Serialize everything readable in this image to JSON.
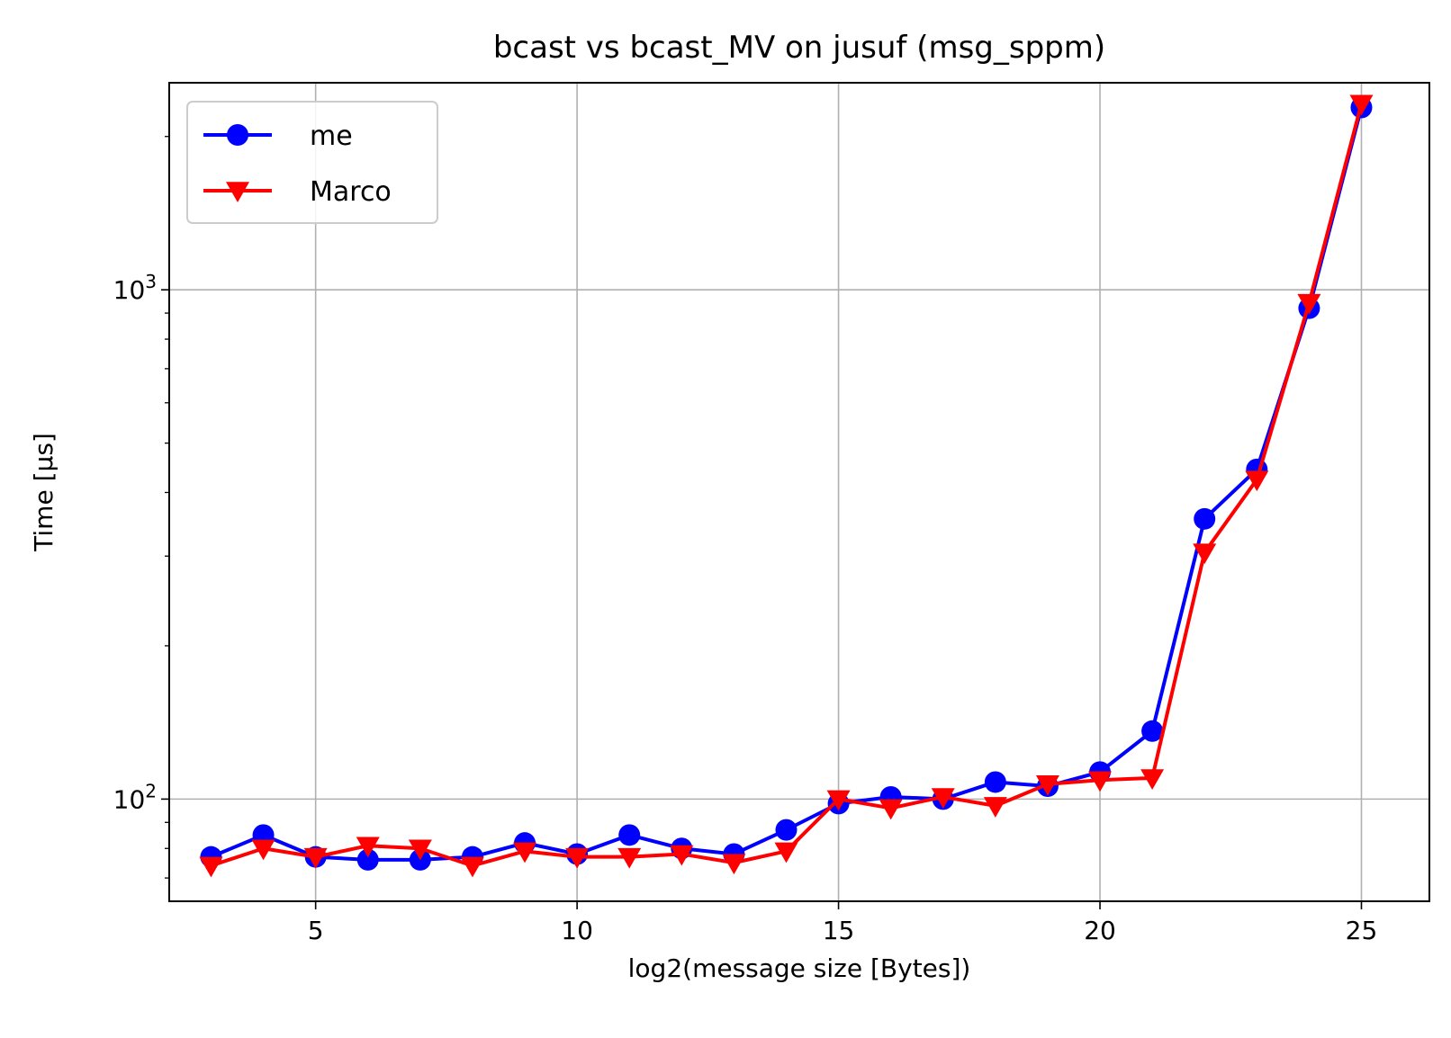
{
  "chart_data": {
    "type": "line",
    "title": "bcast vs bcast_MV on jusuf (msg_sppm)",
    "xlabel": "log2(message size [Bytes])",
    "ylabel": "Time [µs]",
    "xlim": [
      2.2,
      26.3
    ],
    "ylim": [
      63,
      2550
    ],
    "yscale": "log",
    "grid": true,
    "legend_position": "top-left",
    "x": [
      3,
      4,
      5,
      6,
      7,
      8,
      9,
      10,
      11,
      12,
      13,
      14,
      15,
      16,
      17,
      18,
      19,
      20,
      21,
      22,
      23,
      24,
      25
    ],
    "x_ticks": [
      5,
      10,
      15,
      20,
      25
    ],
    "x_tick_labels": [
      "5",
      "10",
      "15",
      "20",
      "25"
    ],
    "y_major_ticks": [
      100,
      1000
    ],
    "y_tick_labels": [
      {
        "base": "10",
        "exp": "2"
      },
      {
        "base": "10",
        "exp": "3"
      }
    ],
    "series": [
      {
        "name": "me",
        "color": "#0000ff",
        "marker": "circle",
        "values": [
          77,
          85,
          77,
          76,
          76,
          77,
          82,
          78,
          85,
          80,
          78,
          87,
          98,
          101,
          100,
          108,
          106,
          113,
          136,
          355,
          444,
          920,
          2280
        ]
      },
      {
        "name": "Marco",
        "color": "#ff0000",
        "marker": "triangle-down",
        "values": [
          74,
          80,
          77,
          81,
          80,
          74,
          79,
          77,
          77,
          78,
          75,
          79,
          100,
          96,
          101,
          97,
          107,
          109,
          110,
          305,
          424,
          943,
          2320
        ]
      }
    ]
  }
}
